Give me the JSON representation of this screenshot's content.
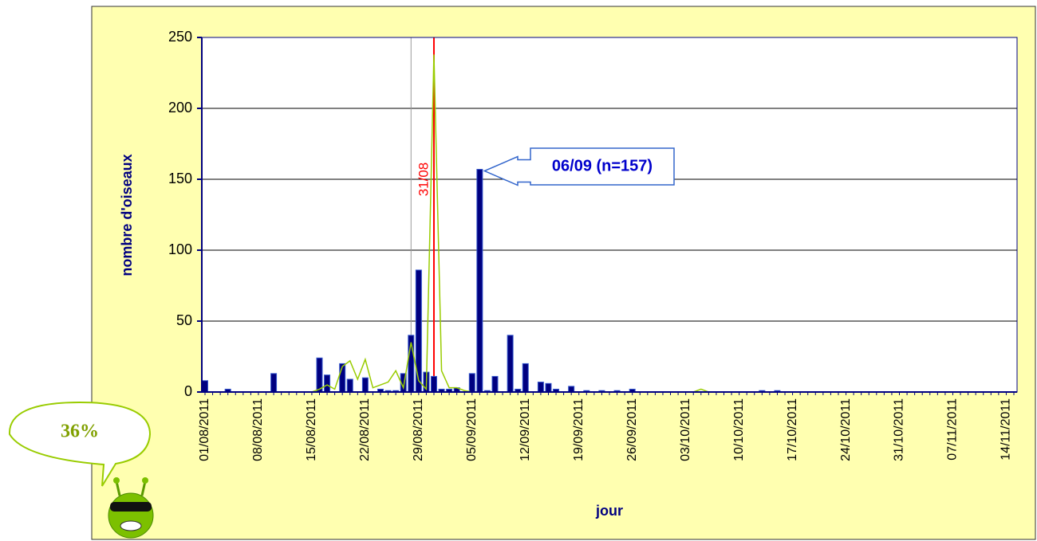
{
  "badge": "36%",
  "chart_data": {
    "type": "bar",
    "y_label": "nombre d'oiseaux",
    "x_label": "jour",
    "categories": [
      "01/08/2011",
      null,
      null,
      null,
      null,
      null,
      null,
      "08/08/2011",
      null,
      null,
      null,
      null,
      null,
      null,
      "15/08/2011",
      null,
      null,
      null,
      null,
      null,
      null,
      "22/08/2011",
      null,
      null,
      null,
      null,
      null,
      null,
      "29/08/2011",
      null,
      null,
      null,
      null,
      null,
      null,
      "05/09/2011",
      null,
      null,
      null,
      null,
      null,
      null,
      "12/09/2011",
      null,
      null,
      null,
      null,
      null,
      null,
      "19/09/2011",
      null,
      null,
      null,
      null,
      null,
      null,
      "26/09/2011",
      null,
      null,
      null,
      null,
      null,
      null,
      "03/10/2011",
      null,
      null,
      null,
      null,
      null,
      null,
      "10/10/2011",
      null,
      null,
      null,
      null,
      null,
      null,
      "17/10/2011",
      null,
      null,
      null,
      null,
      null,
      null,
      "24/10/2011",
      null,
      null,
      null,
      null,
      null,
      null,
      "31/10/2011",
      null,
      null,
      null,
      null,
      null,
      null,
      "07/11/2011",
      null,
      null,
      null,
      null,
      null,
      null,
      "14/11/2011",
      null
    ],
    "series": [
      {
        "type": "bar",
        "color": "#000080",
        "values": [
          8,
          0,
          0,
          2,
          0,
          0,
          0,
          0,
          0,
          13,
          0,
          0,
          0,
          0,
          0,
          24,
          12,
          0,
          20,
          9,
          0,
          10,
          0,
          2,
          1,
          1,
          13,
          40,
          86,
          14,
          11,
          2,
          2,
          3,
          0,
          13,
          157,
          1,
          11,
          0,
          40,
          2,
          20,
          0,
          7,
          6,
          2,
          0,
          4,
          0,
          1,
          0,
          1,
          0,
          1,
          0,
          2,
          0,
          0,
          0,
          0,
          0,
          0,
          0,
          0,
          0,
          0,
          0,
          0,
          0,
          0,
          0,
          0,
          1,
          0,
          1,
          0,
          0,
          0,
          0,
          0,
          0,
          0,
          0,
          0,
          0,
          0,
          0,
          0,
          0,
          0,
          0,
          0,
          0,
          0,
          0,
          0,
          0,
          0,
          0,
          0,
          0,
          0,
          0,
          0,
          0,
          0
        ]
      },
      {
        "type": "line",
        "color": "#99cc00",
        "values": [
          0,
          0,
          0,
          0,
          0,
          0,
          0,
          0,
          0,
          0,
          0,
          0,
          0,
          0,
          0,
          2,
          5,
          2,
          18,
          22,
          9,
          23,
          3,
          5,
          7,
          15,
          3,
          35,
          8,
          2,
          238,
          15,
          3,
          3,
          1,
          0,
          0,
          0,
          0,
          0,
          0,
          0,
          0,
          0,
          0,
          0,
          0,
          0,
          0,
          0,
          0,
          0,
          0,
          0,
          0,
          0,
          0,
          0,
          0,
          0,
          0,
          0,
          0,
          0,
          0,
          2,
          0,
          0,
          0,
          0,
          0,
          0,
          0,
          0,
          0,
          0,
          0,
          0,
          0,
          0,
          0,
          0,
          0,
          0,
          0,
          0,
          0,
          0,
          0,
          0,
          0,
          0,
          0,
          0,
          0,
          0,
          0,
          0,
          0,
          0,
          0,
          0,
          0,
          0,
          0,
          0,
          0
        ]
      }
    ],
    "vlines": [
      {
        "index": 27,
        "color": "#999999"
      },
      {
        "index": 30,
        "color": "#ff0000",
        "label": "31/08"
      }
    ],
    "callout": {
      "text": "06/09 (n=157)",
      "series": 0,
      "index": 36
    },
    "ylim": [
      0,
      250
    ],
    "yticks": [
      0,
      50,
      100,
      150,
      200,
      250
    ],
    "grid": true
  }
}
